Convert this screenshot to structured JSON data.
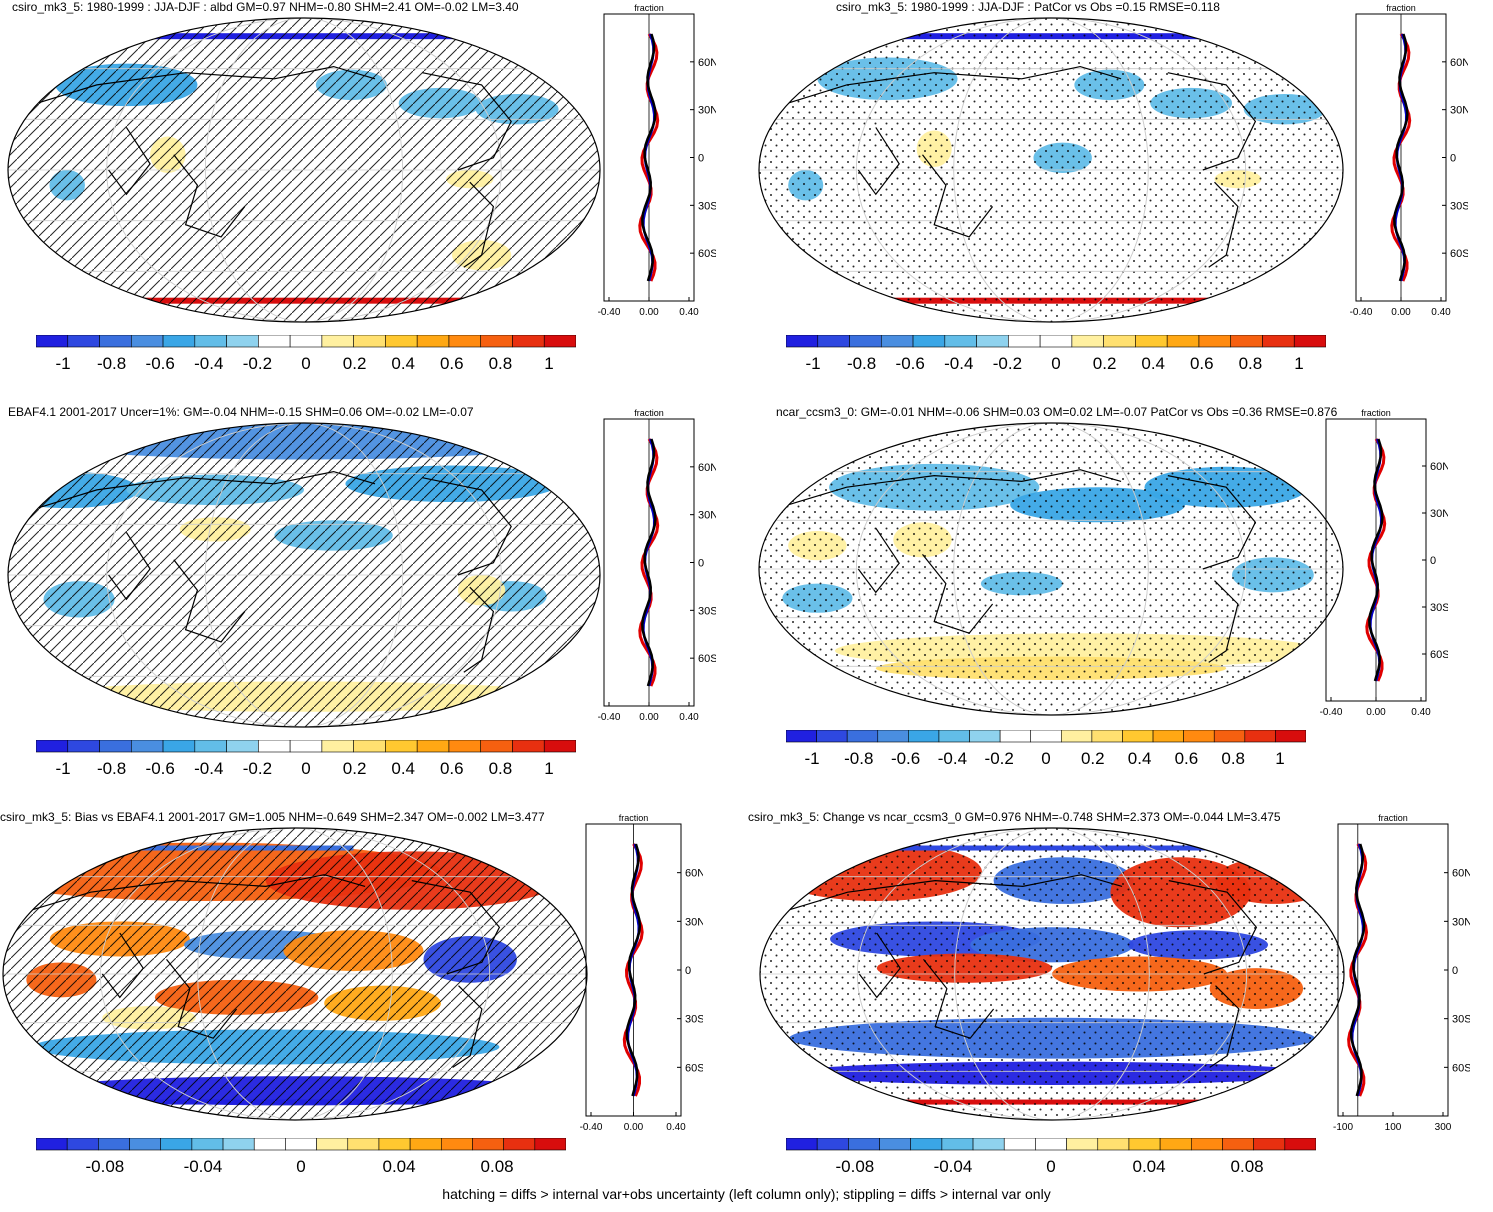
{
  "panels": [
    {
      "id": "p1",
      "title": "csiro_mk3_5: 1980-1999 : JJA-DJF : albd GM=0.97 NHM=-0.80 SHM=2.41 OM=-0.02 LM=3.40",
      "overlay": "hatch",
      "colorbar_labels": [
        "-1",
        "-0.8",
        "-0.6",
        "-0.4",
        "-0.2",
        "0",
        "0.2",
        "0.4",
        "0.6",
        "0.8",
        "1"
      ],
      "zonal_title": "fraction",
      "zonal_xticks": [
        "-0.40",
        "0.00",
        "0.40"
      ],
      "zonal_yticks": [
        "60N",
        "30N",
        "0",
        "30S",
        "60S"
      ]
    },
    {
      "id": "p2",
      "title": "csiro_mk3_5: 1980-1999 : JJA-DJF : PatCor vs Obs =0.15 RMSE=0.118",
      "overlay": "stipple",
      "colorbar_labels": [
        "-1",
        "-0.8",
        "-0.6",
        "-0.4",
        "-0.2",
        "0",
        "0.2",
        "0.4",
        "0.6",
        "0.8",
        "1"
      ],
      "zonal_title": "fraction",
      "zonal_xticks": [
        "-0.40",
        "0.00",
        "0.40"
      ],
      "zonal_yticks": [
        "60N",
        "30N",
        "0",
        "30S",
        "60S"
      ]
    },
    {
      "id": "p3",
      "title": "EBAF4.1 2001-2017 Uncer=1%: GM=-0.04 NHM=-0.15 SHM=0.06 OM=-0.02 LM=-0.07",
      "overlay": "hatch",
      "colorbar_labels": [
        "-1",
        "-0.8",
        "-0.6",
        "-0.4",
        "-0.2",
        "0",
        "0.2",
        "0.4",
        "0.6",
        "0.8",
        "1"
      ],
      "zonal_title": "fraction",
      "zonal_xticks": [
        "-0.40",
        "0.00",
        "0.40"
      ],
      "zonal_yticks": [
        "60N",
        "30N",
        "0",
        "30S",
        "60S"
      ]
    },
    {
      "id": "p4",
      "title": "ncar_ccsm3_0: GM=-0.01 NHM=-0.06 SHM=0.03 OM=0.02 LM=-0.07 PatCor vs Obs =0.36 RMSE=0.876",
      "overlay": "stipple",
      "colorbar_labels": [
        "-1",
        "-0.8",
        "-0.6",
        "-0.4",
        "-0.2",
        "0",
        "0.2",
        "0.4",
        "0.6",
        "0.8",
        "1"
      ],
      "zonal_title": "fraction",
      "zonal_xticks": [
        "-0.40",
        "0.00",
        "0.40"
      ],
      "zonal_yticks": [
        "60N",
        "30N",
        "0",
        "30S",
        "60S"
      ]
    },
    {
      "id": "p5",
      "title": "csiro_mk3_5: Bias vs EBAF4.1 2001-2017 GM=1.005 NHM=-0.649 SHM=2.347 OM=-0.002 LM=3.477",
      "overlay": "hatch",
      "colorbar_labels": [
        "-0.08",
        "-0.04",
        "0",
        "0.04",
        "0.08"
      ],
      "zonal_title": "fraction",
      "zonal_xticks": [
        "-0.40",
        "0.00",
        "0.40"
      ],
      "zonal_yticks": [
        "60N",
        "30N",
        "0",
        "30S",
        "60S"
      ]
    },
    {
      "id": "p6",
      "title": "csiro_mk3_5: Change vs ncar_ccsm3_0 GM=0.976 NHM=-0.748 SHM=2.373 OM=-0.044 LM=3.475",
      "overlay": "stipple",
      "colorbar_labels": [
        "-0.08",
        "-0.04",
        "0",
        "0.04",
        "0.08"
      ],
      "zonal_title": "fraction",
      "zonal_xticks": [
        "-100",
        "100",
        "300"
      ],
      "zonal_yticks": [
        "60N",
        "30N",
        "0",
        "30S",
        "60S"
      ]
    }
  ],
  "caption": "hatching = diffs > internal var+obs uncertainty (left column only); stippling = diffs > internal var only",
  "colors": {
    "palette": [
      "#2020e0",
      "#2e48e0",
      "#3a6fde",
      "#4a8ee0",
      "#3aa6e6",
      "#62bde8",
      "#8fd2ee",
      "#ffffff",
      "#ffffff",
      "#fff0a0",
      "#ffe070",
      "#ffc830",
      "#ffa814",
      "#ff8a10",
      "#f66010",
      "#e83010",
      "#d80d0d"
    ],
    "model_line": "#e00000",
    "obs_line": "#0000cc",
    "mean_line": "#000000"
  },
  "chart_data": [
    {
      "type": "heatmap",
      "title": "csiro_mk3_5: 1980-1999 : JJA-DJF : albd GM=0.97 NHM=-0.80 SHM=2.41 OM=-0.02 LM=3.40",
      "projection": "robinson",
      "colorbar": {
        "min": -1,
        "max": 1,
        "ticks": [
          -1,
          -0.8,
          -0.6,
          -0.4,
          -0.2,
          0,
          0.2,
          0.4,
          0.6,
          0.8,
          1
        ]
      },
      "zonal_profile": {
        "xlabel": "fraction",
        "xlim": [
          -0.4,
          0.4
        ],
        "ylim": [
          -90,
          90
        ]
      }
    },
    {
      "type": "heatmap",
      "title": "csiro_mk3_5: 1980-1999 : JJA-DJF : PatCor vs Obs =0.15 RMSE=0.118",
      "projection": "robinson",
      "colorbar": {
        "min": -1,
        "max": 1,
        "ticks": [
          -1,
          -0.8,
          -0.6,
          -0.4,
          -0.2,
          0,
          0.2,
          0.4,
          0.6,
          0.8,
          1
        ]
      },
      "zonal_profile": {
        "xlabel": "fraction",
        "xlim": [
          -0.4,
          0.4
        ],
        "ylim": [
          -90,
          90
        ]
      }
    },
    {
      "type": "heatmap",
      "title": "EBAF4.1 2001-2017 Uncer=1%: GM=-0.04 NHM=-0.15 SHM=0.06 OM=-0.02 LM=-0.07",
      "projection": "robinson",
      "colorbar": {
        "min": -1,
        "max": 1,
        "ticks": [
          -1,
          -0.8,
          -0.6,
          -0.4,
          -0.2,
          0,
          0.2,
          0.4,
          0.6,
          0.8,
          1
        ]
      },
      "zonal_profile": {
        "xlabel": "fraction",
        "xlim": [
          -0.4,
          0.4
        ],
        "ylim": [
          -90,
          90
        ]
      }
    },
    {
      "type": "heatmap",
      "title": "ncar_ccsm3_0: GM=-0.01 NHM=-0.06 SHM=0.03 OM=0.02 LM=-0.07 PatCor vs Obs =0.36 RMSE=0.876",
      "projection": "robinson",
      "colorbar": {
        "min": -1,
        "max": 1,
        "ticks": [
          -1,
          -0.8,
          -0.6,
          -0.4,
          -0.2,
          0,
          0.2,
          0.4,
          0.6,
          0.8,
          1
        ]
      },
      "zonal_profile": {
        "xlabel": "fraction",
        "xlim": [
          -0.4,
          0.4
        ],
        "ylim": [
          -90,
          90
        ]
      }
    },
    {
      "type": "heatmap",
      "title": "csiro_mk3_5: Bias vs EBAF4.1 2001-2017 GM=1.005 NHM=-0.649 SHM=2.347 OM=-0.002 LM=3.477",
      "projection": "robinson",
      "colorbar": {
        "min": -0.1,
        "max": 0.1,
        "ticks": [
          -0.08,
          -0.04,
          0,
          0.04,
          0.08
        ]
      },
      "zonal_profile": {
        "xlabel": "fraction",
        "xlim": [
          -0.4,
          0.4
        ],
        "ylim": [
          -90,
          90
        ]
      }
    },
    {
      "type": "heatmap",
      "title": "csiro_mk3_5: Change vs ncar_ccsm3_0 GM=0.976 NHM=-0.748 SHM=2.373 OM=-0.044 LM=3.475",
      "projection": "robinson",
      "colorbar": {
        "min": -0.1,
        "max": 0.1,
        "ticks": [
          -0.08,
          -0.04,
          0,
          0.04,
          0.08
        ]
      },
      "zonal_profile": {
        "xlabel": "fraction",
        "xlim": [
          -100,
          300
        ],
        "ylim": [
          -90,
          90
        ]
      }
    }
  ]
}
